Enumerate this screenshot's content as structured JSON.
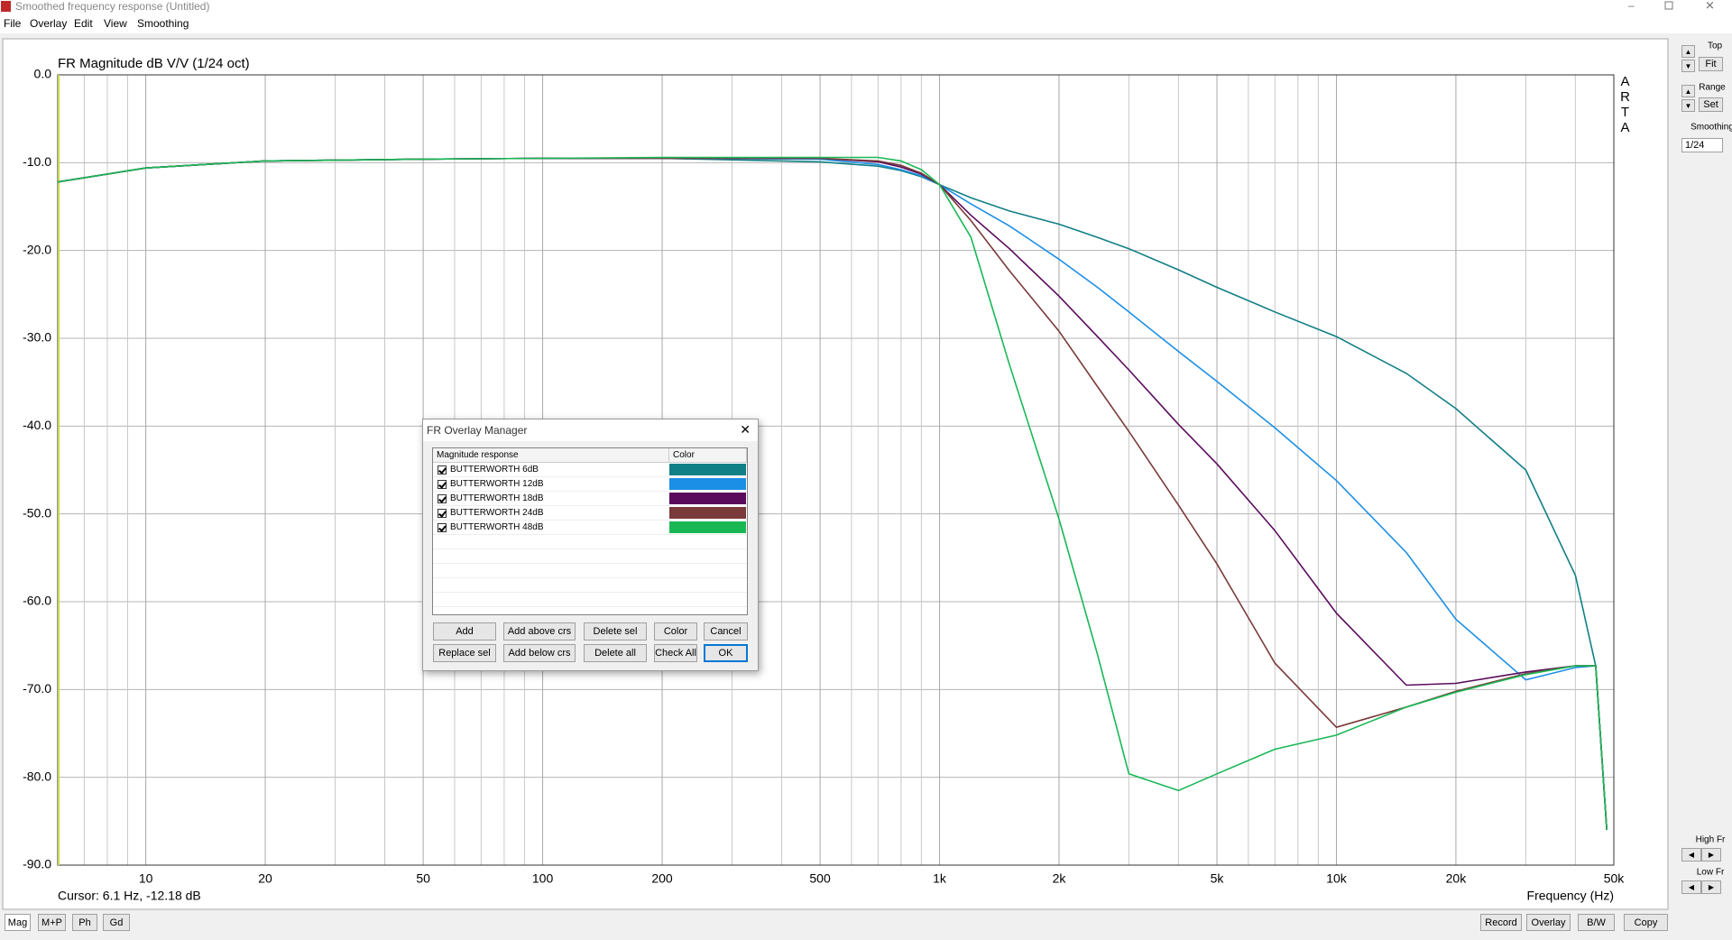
{
  "window": {
    "title": "Smoothed frequency response (Untitled)",
    "menu": [
      "File",
      "Overlay",
      "Edit",
      "View",
      "Smoothing"
    ]
  },
  "chart_data": {
    "type": "line",
    "title": "FR Magnitude dB V/V (1/24 oct)",
    "x_label": "Frequency (Hz)",
    "xscale": "log",
    "grid": true,
    "xlim": [
      6,
      50000
    ],
    "ylim": [
      -90,
      0
    ],
    "xticks": [
      10,
      20,
      50,
      100,
      200,
      500,
      {
        "value": 1000,
        "label": "1k"
      },
      {
        "value": 2000,
        "label": "2k"
      },
      {
        "value": 5000,
        "label": "5k"
      },
      {
        "value": 10000,
        "label": "10k"
      },
      {
        "value": 20000,
        "label": "20k"
      },
      {
        "value": 50000,
        "label": "50k"
      }
    ],
    "xminorticks": [
      6,
      7,
      8,
      9,
      30,
      40,
      60,
      70,
      80,
      90,
      300,
      400,
      600,
      700,
      800,
      900,
      3000,
      4000,
      6000,
      7000,
      8000,
      9000,
      30000,
      40000
    ],
    "yticks": [
      {
        "value": -90,
        "label": "-90.0"
      },
      {
        "value": -80,
        "label": "-80.0"
      },
      {
        "value": -70,
        "label": "-70.0"
      },
      {
        "value": -60,
        "label": "-60.0"
      },
      {
        "value": -50,
        "label": "-50.0"
      },
      {
        "value": -40,
        "label": "-40.0"
      },
      {
        "value": -30,
        "label": "-30.0"
      },
      {
        "value": -20,
        "label": "-20.0"
      },
      {
        "value": -10,
        "label": "-10.0"
      },
      {
        "value": 0,
        "label": "0.0"
      }
    ],
    "x": [
      6,
      10,
      20,
      50,
      100,
      200,
      500,
      700,
      800,
      900,
      1000,
      1200,
      1500,
      2000,
      2500,
      3000,
      4000,
      5000,
      7000,
      10000,
      15000,
      20000,
      30000,
      40000,
      45000,
      48000
    ],
    "series": [
      {
        "name": "BUTTERWORTH 6dB",
        "color": "#117f86",
        "values": [
          -12.2,
          -10.6,
          -9.8,
          -9.6,
          -9.5,
          -9.5,
          -9.9,
          -10.4,
          -10.9,
          -11.6,
          -12.5,
          -14.0,
          -15.5,
          -17.0,
          -18.5,
          -19.8,
          -22.2,
          -24.2,
          -27.0,
          -29.8,
          -34.0,
          -38.0,
          -45.0,
          -57.0,
          -67.3,
          -86.0
        ]
      },
      {
        "name": "BUTTERWORTH 12dB",
        "color": "#1b8fe6",
        "values": [
          -12.2,
          -10.6,
          -9.8,
          -9.6,
          -9.5,
          -9.5,
          -9.6,
          -10.2,
          -10.8,
          -11.5,
          -12.5,
          -14.7,
          -17.2,
          -21.0,
          -24.2,
          -27.0,
          -31.5,
          -34.9,
          -40.2,
          -46.2,
          -54.4,
          -62.0,
          -68.9,
          -67.5,
          -67.3,
          -86.0
        ]
      },
      {
        "name": "BUTTERWORTH 18dB",
        "color": "#5a0b5c",
        "values": [
          -12.2,
          -10.6,
          -9.8,
          -9.6,
          -9.5,
          -9.5,
          -9.5,
          -9.9,
          -10.5,
          -11.3,
          -12.5,
          -16.0,
          -19.8,
          -25.2,
          -29.8,
          -33.6,
          -39.8,
          -44.3,
          -51.9,
          -61.3,
          -69.5,
          -69.3,
          -68.0,
          -67.3,
          -67.3,
          -86.0
        ]
      },
      {
        "name": "BUTTERWORTH 24dB",
        "color": "#7b3a3a",
        "values": [
          -12.2,
          -10.6,
          -9.8,
          -9.6,
          -9.5,
          -9.5,
          -9.5,
          -9.8,
          -10.3,
          -11.2,
          -12.5,
          -16.6,
          -22.3,
          -29.2,
          -35.5,
          -40.6,
          -49.0,
          -55.7,
          -67.0,
          -74.3,
          -72.0,
          -70.2,
          -68.2,
          -67.3,
          -67.3,
          -86.0
        ]
      },
      {
        "name": "BUTTERWORTH 48dB",
        "color": "#19b855",
        "values": [
          -12.2,
          -10.6,
          -9.8,
          -9.6,
          -9.5,
          -9.4,
          -9.4,
          -9.4,
          -9.8,
          -10.8,
          -12.5,
          -18.5,
          -33.0,
          -50.6,
          -66.0,
          -79.6,
          -81.5,
          -79.6,
          -76.8,
          -75.2,
          -72.0,
          -70.3,
          -68.3,
          -67.3,
          -67.3,
          -86.0
        ]
      }
    ]
  },
  "status": {
    "cursor": "Cursor: 6.1 Hz, -12.18 dB"
  },
  "brand": "ARTA",
  "side_panel": {
    "top": "Top",
    "fit": "Fit",
    "range": "Range",
    "set": "Set",
    "smoothing": "Smoothing",
    "smoothing_value": "1/24",
    "high_fr": "High Fr",
    "low_fr": "Low Fr"
  },
  "bottom_buttons": {
    "left": [
      "Mag",
      "M+P",
      "Ph",
      "Gd"
    ],
    "right": [
      "Record",
      "Overlay",
      "B/W",
      "Copy"
    ]
  },
  "dialog": {
    "title": "FR Overlay Manager",
    "columns": [
      "Magnitude response",
      "Color"
    ],
    "buttons": [
      [
        "Add",
        "Add above crs",
        "Delete sel",
        "Color",
        "Cancel"
      ],
      [
        "Replace sel",
        "Add below crs",
        "Delete all",
        "Check All",
        "OK"
      ]
    ]
  }
}
